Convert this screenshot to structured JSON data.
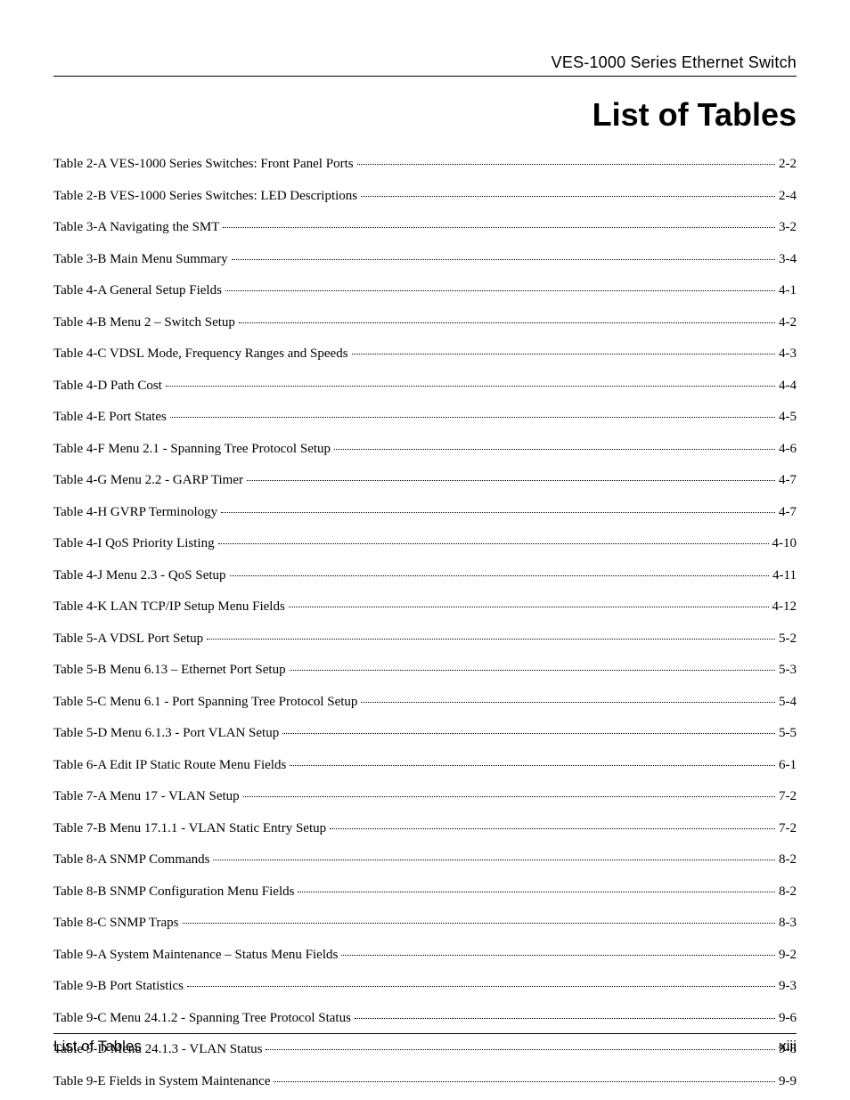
{
  "header_text": "VES-1000 Series Ethernet Switch",
  "page_title": "List of Tables",
  "footer_left": "List of Tables",
  "footer_right": "xiii",
  "toc_entries": [
    {
      "label": "Table 2-A VES-1000 Series Switches: Front Panel Ports",
      "page": "2-2"
    },
    {
      "label": "Table 2-B VES-1000 Series Switches: LED Descriptions",
      "page": "2-4"
    },
    {
      "label": "Table 3-A Navigating the SMT",
      "page": "3-2"
    },
    {
      "label": "Table 3-B Main Menu Summary",
      "page": "3-4"
    },
    {
      "label": "Table 4-A General Setup Fields",
      "page": "4-1"
    },
    {
      "label": "Table 4-B Menu 2 – Switch Setup",
      "page": "4-2"
    },
    {
      "label": "Table 4-C VDSL Mode, Frequency Ranges and Speeds",
      "page": "4-3"
    },
    {
      "label": "Table 4-D Path Cost",
      "page": "4-4"
    },
    {
      "label": "Table 4-E Port States",
      "page": "4-5"
    },
    {
      "label": "Table 4-F Menu 2.1 - Spanning Tree Protocol Setup",
      "page": "4-6"
    },
    {
      "label": "Table 4-G Menu 2.2 - GARP Timer",
      "page": "4-7"
    },
    {
      "label": "Table 4-H GVRP Terminology",
      "page": "4-7"
    },
    {
      "label": "Table 4-I QoS Priority Listing",
      "page": "4-10"
    },
    {
      "label": "Table 4-J Menu 2.3 - QoS Setup",
      "page": "4-11"
    },
    {
      "label": "Table 4-K LAN TCP/IP Setup Menu Fields",
      "page": "4-12"
    },
    {
      "label": "Table 5-A VDSL Port Setup",
      "page": "5-2"
    },
    {
      "label": "Table 5-B Menu 6.13 – Ethernet Port Setup",
      "page": "5-3"
    },
    {
      "label": "Table 5-C Menu 6.1 - Port Spanning Tree Protocol Setup",
      "page": "5-4"
    },
    {
      "label": "Table 5-D Menu 6.1.3 - Port VLAN Setup",
      "page": "5-5"
    },
    {
      "label": "Table 6-A Edit IP Static Route Menu Fields",
      "page": "6-1"
    },
    {
      "label": "Table 7-A Menu 17 - VLAN Setup",
      "page": "7-2"
    },
    {
      "label": "Table 7-B Menu 17.1.1 - VLAN Static Entry Setup",
      "page": "7-2"
    },
    {
      "label": "Table 8-A SNMP Commands",
      "page": "8-2"
    },
    {
      "label": "Table 8-B SNMP Configuration Menu Fields",
      "page": "8-2"
    },
    {
      "label": "Table 8-C SNMP Traps",
      "page": "8-3"
    },
    {
      "label": "Table 9-A System Maintenance – Status Menu Fields",
      "page": "9-2"
    },
    {
      "label": "Table 9-B Port Statistics",
      "page": "9-3"
    },
    {
      "label": "Table 9-C Menu 24.1.2 - Spanning Tree Protocol Status",
      "page": "9-6"
    },
    {
      "label": "Table 9-D Menu 24.1.3 - VLAN Status",
      "page": "9-8"
    },
    {
      "label": "Table 9-E Fields in System Maintenance",
      "page": "9-9"
    }
  ]
}
